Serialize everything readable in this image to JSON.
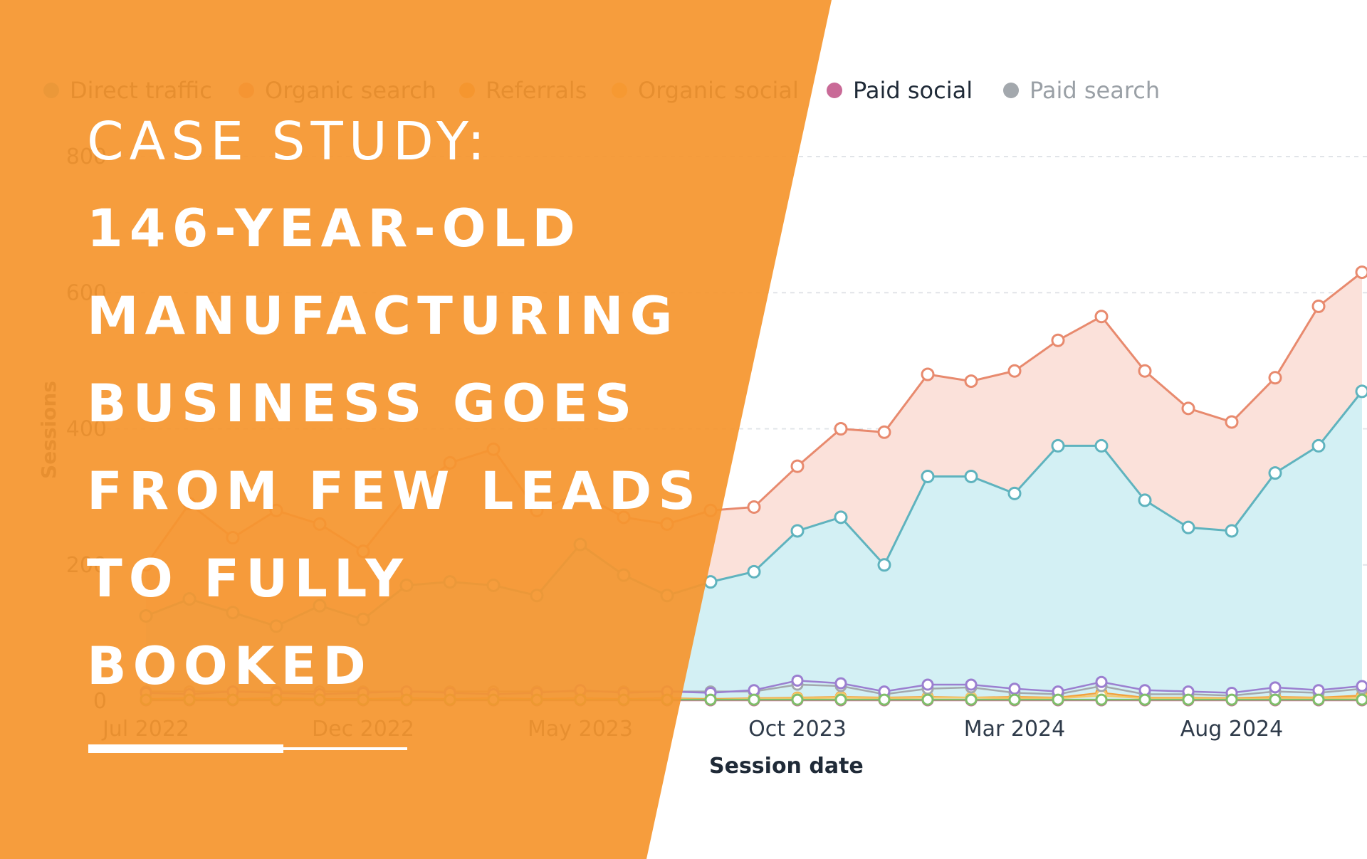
{
  "chart_data": {
    "type": "area",
    "xlabel": "Session date",
    "ylabel": "Sessions",
    "ylim": [
      0,
      800
    ],
    "y_ticks": [
      "0",
      "200",
      "400",
      "600",
      "800"
    ],
    "x_ticks": [
      "Jul 2022",
      "Dec 2022",
      "May 2023",
      "Oct 2023",
      "Mar 2024",
      "Aug 2024"
    ],
    "x": [
      "Jul 2022",
      "Aug 2022",
      "Sep 2022",
      "Oct 2022",
      "Nov 2022",
      "Dec 2022",
      "Jan 2023",
      "Feb 2023",
      "Mar 2023",
      "Apr 2023",
      "May 2023",
      "Jun 2023",
      "Jul 2023",
      "Aug 2023",
      "Sep 2023",
      "Oct 2023",
      "Nov 2023",
      "Dec 2023",
      "Jan 2024",
      "Feb 2024",
      "Mar 2024",
      "Apr 2024",
      "May 2024",
      "Jun 2024",
      "Jul 2024",
      "Aug 2024",
      "Sep 2024",
      "Oct 2024",
      "Nov 2024"
    ],
    "legend_position": "top",
    "series": [
      {
        "name": "Direct traffic",
        "color": "#5fb3be",
        "values": [
          125,
          150,
          130,
          110,
          140,
          120,
          170,
          175,
          170,
          155,
          230,
          185,
          155,
          175,
          190,
          250,
          270,
          200,
          330,
          330,
          305,
          375,
          375,
          295,
          255,
          250,
          335,
          375,
          455
        ]
      },
      {
        "name": "Organic search",
        "color": "#e88a6e",
        "values": [
          200,
          290,
          240,
          280,
          260,
          220,
          300,
          350,
          370,
          280,
          305,
          270,
          260,
          280,
          285,
          345,
          400,
          395,
          480,
          470,
          485,
          530,
          565,
          485,
          430,
          410,
          475,
          580,
          630
        ]
      },
      {
        "name": "Referrals",
        "color": "#f2a13c",
        "values": [
          3,
          4,
          3,
          4,
          3,
          3,
          4,
          3,
          4,
          3,
          4,
          3,
          4,
          3,
          4,
          5,
          6,
          5,
          6,
          5,
          6,
          5,
          12,
          5,
          5,
          4,
          6,
          5,
          8
        ]
      },
      {
        "name": "Organic social",
        "color": "#f5c86a",
        "values": [
          2,
          3,
          2,
          3,
          2,
          2,
          3,
          2,
          3,
          2,
          3,
          2,
          3,
          2,
          3,
          4,
          5,
          4,
          5,
          5,
          4,
          4,
          8,
          4,
          4,
          3,
          4,
          4,
          5
        ]
      },
      {
        "name": "Paid social",
        "color": "#c96a97",
        "values": [
          1,
          1,
          1,
          1,
          1,
          1,
          1,
          1,
          1,
          1,
          1,
          1,
          1,
          1,
          1,
          1,
          1,
          1,
          1,
          1,
          1,
          1,
          1,
          1,
          1,
          1,
          1,
          1,
          1
        ]
      },
      {
        "name": "Paid search",
        "color": "#a3a8ad",
        "values": [
          14,
          14,
          14,
          14,
          14,
          14,
          14,
          14,
          14,
          14,
          14,
          14,
          14,
          14,
          14,
          24,
          22,
          10,
          18,
          20,
          12,
          10,
          22,
          10,
          10,
          8,
          14,
          12,
          18
        ]
      },
      {
        "name": "",
        "color": "#9b7fd0",
        "values": [
          12,
          10,
          14,
          12,
          10,
          12,
          14,
          12,
          10,
          12,
          16,
          12,
          14,
          12,
          16,
          30,
          26,
          14,
          24,
          24,
          18,
          14,
          28,
          16,
          14,
          12,
          20,
          16,
          22
        ]
      },
      {
        "name": "",
        "color": "#7fbf6a",
        "values": [
          2,
          2,
          2,
          2,
          2,
          2,
          2,
          2,
          2,
          2,
          2,
          2,
          2,
          2,
          2,
          2,
          2,
          2,
          2,
          2,
          2,
          2,
          2,
          2,
          2,
          2,
          2,
          2,
          2
        ]
      }
    ]
  },
  "headline": {
    "kicker": "CASE STUDY:",
    "lines": [
      "146-YEAR-OLD",
      "MANUFACTURING",
      "BUSINESS GOES",
      "FROM FEW LEADS",
      "TO FULLY",
      "BOOKED"
    ]
  },
  "colors": {
    "panel": "#f5962e",
    "text": "#ffffff",
    "grid": "#e1e4e8"
  }
}
